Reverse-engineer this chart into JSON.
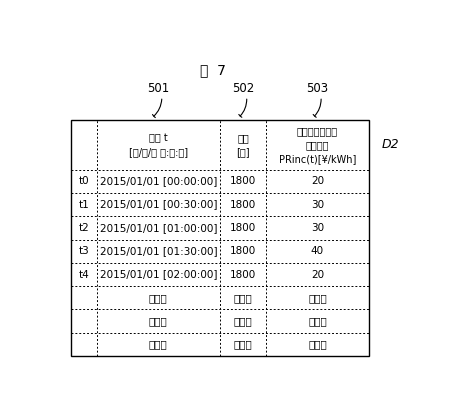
{
  "title": "図  7",
  "title_fontsize": 10,
  "label_D2": "D2",
  "col_labels": [
    "501",
    "502",
    "503"
  ],
  "header_row": [
    "時刻 t\n[年/月/日 時:分:秒]",
    "期間\n[秒]",
    "インセンティブ\n価格単価\nPRinc(t)[¥/kWh]"
  ],
  "data_rows": [
    [
      "t0",
      "2015/01/01 [00:00:00]",
      "1800",
      "20"
    ],
    [
      "t1",
      "2015/01/01 [00:30:00]",
      "1800",
      "30"
    ],
    [
      "t2",
      "2015/01/01 [01:00:00]",
      "1800",
      "30"
    ],
    [
      "t3",
      "2015/01/01 [01:30:00]",
      "1800",
      "40"
    ],
    [
      "t4",
      "2015/01/01 [02:00:00]",
      "1800",
      "20"
    ],
    [
      "",
      "・・・",
      "・・・",
      "・・・"
    ],
    [
      "",
      "・・・",
      "・・・",
      "・・・"
    ],
    [
      "",
      "・・・",
      "・・・",
      "・・・"
    ]
  ],
  "fig_width": 4.57,
  "fig_height": 4.09,
  "background": "#ffffff"
}
